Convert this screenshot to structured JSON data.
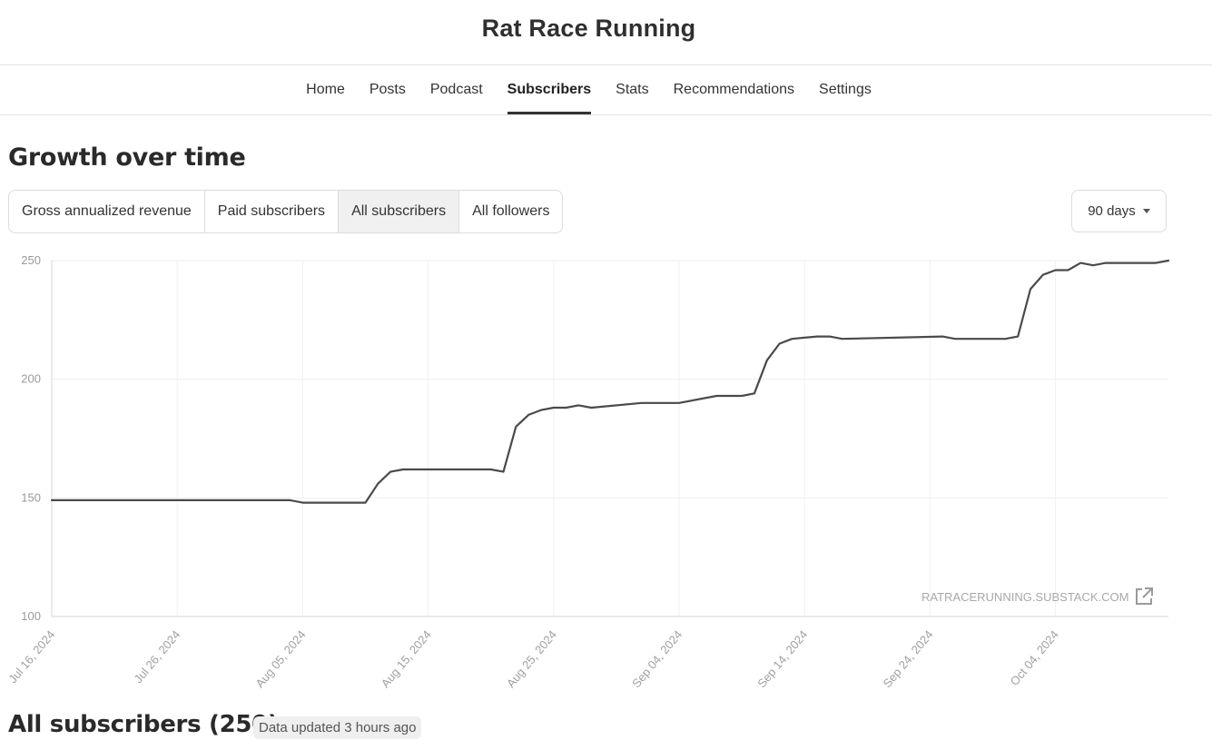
{
  "header": {
    "site_title": "Rat Race Running"
  },
  "nav": {
    "items": [
      {
        "label": "Home",
        "active": false
      },
      {
        "label": "Posts",
        "active": false
      },
      {
        "label": "Podcast",
        "active": false
      },
      {
        "label": "Subscribers",
        "active": true
      },
      {
        "label": "Stats",
        "active": false
      },
      {
        "label": "Recommendations",
        "active": false
      },
      {
        "label": "Settings",
        "active": false
      }
    ]
  },
  "growth": {
    "title": "Growth over time",
    "tabs": [
      {
        "label": "Gross annualized revenue",
        "active": false
      },
      {
        "label": "Paid subscribers",
        "active": false
      },
      {
        "label": "All subscribers",
        "active": true
      },
      {
        "label": "All followers",
        "active": false
      }
    ],
    "range": {
      "selected": "90 days"
    },
    "watermark": "RATRACERUNNING.SUBSTACK.COM"
  },
  "chart_data": {
    "type": "line",
    "title": "",
    "xlabel": "",
    "ylabel": "",
    "ylim": [
      100,
      250
    ],
    "yticks": [
      100,
      150,
      200,
      250
    ],
    "xticks": [
      "Jul 16, 2024",
      "Jul 26, 2024",
      "Aug 05, 2024",
      "Aug 15, 2024",
      "Aug 25, 2024",
      "Sep 04, 2024",
      "Sep 14, 2024",
      "Sep 24, 2024",
      "Oct 04, 2024"
    ],
    "grid": true,
    "line_color": "#4a4a4a",
    "series": [
      {
        "x": [
          "Jul 16, 2024",
          "Aug 04, 2024",
          "Aug 05, 2024",
          "Aug 09, 2024",
          "Aug 10, 2024",
          "Aug 11, 2024",
          "Aug 12, 2024",
          "Aug 13, 2024",
          "Aug 14, 2024",
          "Aug 20, 2024",
          "Aug 21, 2024",
          "Aug 22, 2024",
          "Aug 23, 2024",
          "Aug 24, 2024",
          "Aug 25, 2024",
          "Aug 26, 2024",
          "Aug 27, 2024",
          "Aug 28, 2024",
          "Sep 01, 2024",
          "Sep 04, 2024",
          "Sep 07, 2024",
          "Sep 08, 2024",
          "Sep 09, 2024",
          "Sep 10, 2024",
          "Sep 11, 2024",
          "Sep 12, 2024",
          "Sep 13, 2024",
          "Sep 15, 2024",
          "Sep 16, 2024",
          "Sep 17, 2024",
          "Sep 25, 2024",
          "Sep 26, 2024",
          "Sep 30, 2024",
          "Oct 01, 2024",
          "Oct 02, 2024",
          "Oct 03, 2024",
          "Oct 04, 2024",
          "Oct 05, 2024",
          "Oct 06, 2024",
          "Oct 07, 2024",
          "Oct 08, 2024",
          "Oct 09, 2024",
          "Oct 12, 2024",
          "Oct 13, 2024"
        ],
        "values": [
          149,
          149,
          148,
          148,
          148,
          156,
          161,
          162,
          162,
          162,
          161,
          180,
          185,
          187,
          188,
          188,
          189,
          188,
          190,
          190,
          193,
          193,
          193,
          194,
          208,
          215,
          217,
          218,
          218,
          217,
          218,
          217,
          217,
          218,
          238,
          244,
          246,
          246,
          249,
          248,
          249,
          249,
          249,
          250
        ]
      }
    ]
  },
  "subscribers": {
    "title": "All subscribers (250)",
    "updated": "Data updated 3 hours ago"
  }
}
